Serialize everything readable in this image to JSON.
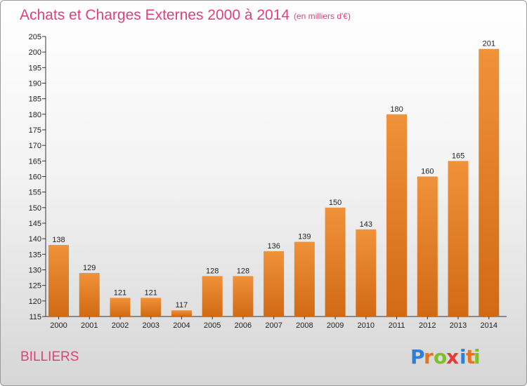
{
  "chart_data": {
    "type": "bar",
    "title": "Achats et Charges Externes 2000 à 2014",
    "subtitle": "(en milliers d'€)",
    "xlabel": "",
    "ylabel": "",
    "categories": [
      "2000",
      "2001",
      "2002",
      "2003",
      "2004",
      "2005",
      "2006",
      "2007",
      "2008",
      "2009",
      "2010",
      "2011",
      "2012",
      "2013",
      "2014"
    ],
    "values": [
      138,
      129,
      121,
      121,
      117,
      128,
      128,
      136,
      139,
      150,
      143,
      180,
      160,
      165,
      201
    ],
    "ylim": [
      115,
      205
    ],
    "yticks": [
      115,
      120,
      125,
      130,
      135,
      140,
      145,
      150,
      155,
      160,
      165,
      170,
      175,
      180,
      185,
      190,
      195,
      200,
      205
    ],
    "grid": false,
    "legend": "none",
    "bar_color": "#f0923a",
    "bar_color_dark": "#d16a14"
  },
  "commune": "BILLIERS",
  "logo": {
    "letters": [
      "P",
      "r",
      "o",
      "x",
      "i",
      "t",
      "i"
    ],
    "colors": [
      "#2f7fd6",
      "#e8731e",
      "#7fbf2a",
      "#e23b3b",
      "#2f7fd6",
      "#e8731e",
      "#7fbf2a"
    ]
  }
}
